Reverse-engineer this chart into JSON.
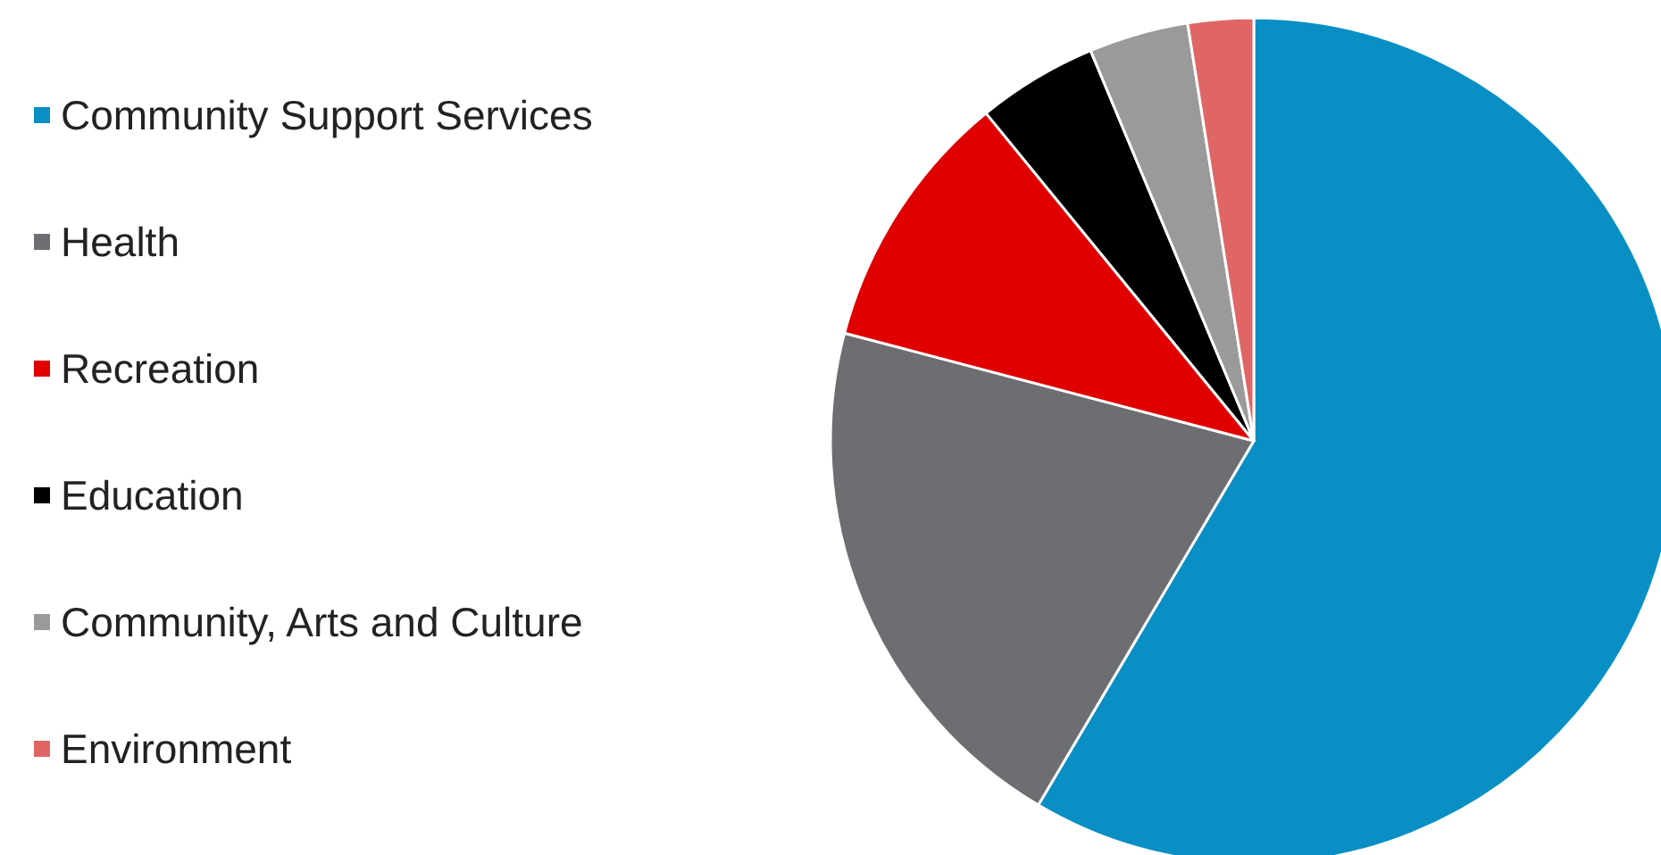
{
  "chart_data": {
    "type": "pie",
    "categories": [
      "Community Support Services",
      "Health",
      "Recreation",
      "Education",
      "Community, Arts and Culture",
      "Environment"
    ],
    "values": [
      58.5,
      20.6,
      10.0,
      4.6,
      3.8,
      2.5
    ],
    "colors": [
      "#0a8fc4",
      "#6d6e71",
      "#e00000",
      "#000000",
      "#9a9a9a",
      "#e06666"
    ],
    "legend": "left"
  }
}
